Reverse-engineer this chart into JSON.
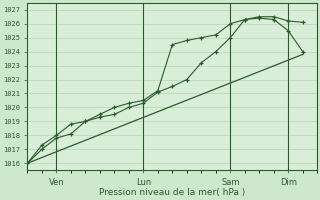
{
  "bg_color": "#cde8cd",
  "plot_bg_color": "#d8eed8",
  "grid_color": "#b0ccb0",
  "line_color": "#2d5a2d",
  "marker_color": "#2d5a2d",
  "ylabel_values": [
    1016,
    1017,
    1018,
    1019,
    1020,
    1021,
    1022,
    1023,
    1024,
    1025,
    1026,
    1027
  ],
  "ylim": [
    1015.5,
    1027.5
  ],
  "xlabel": "Pression niveau de la mer( hPa )",
  "xtick_labels": [
    "Ven",
    "Lun",
    "Sam",
    "Dim"
  ],
  "xtick_positions": [
    1,
    4,
    7,
    9
  ],
  "xvlines": [
    1,
    4,
    7,
    9
  ],
  "xlim": [
    0,
    10
  ],
  "line1_x": [
    0,
    0.5,
    1,
    1.5,
    2,
    2.5,
    3,
    3.5,
    4,
    4.5,
    5,
    5.5,
    6,
    6.5,
    7,
    7.5,
    8,
    8.5,
    9,
    9.5
  ],
  "line1_y": [
    1016.0,
    1017.0,
    1017.8,
    1018.1,
    1019.0,
    1019.3,
    1019.5,
    1020.0,
    1020.3,
    1021.1,
    1021.5,
    1022.0,
    1023.2,
    1024.0,
    1025.0,
    1026.3,
    1026.5,
    1026.5,
    1026.2,
    1026.1
  ],
  "line2_x": [
    0,
    0.5,
    1,
    1.5,
    2,
    2.5,
    3,
    3.5,
    4,
    4.5,
    5,
    5.5,
    6,
    6.5,
    7,
    7.5,
    8,
    8.5,
    9,
    9.5
  ],
  "line2_y": [
    1016.0,
    1017.3,
    1018.0,
    1018.8,
    1019.0,
    1019.5,
    1020.0,
    1020.3,
    1020.5,
    1021.2,
    1024.5,
    1024.8,
    1025.0,
    1025.2,
    1026.0,
    1026.3,
    1026.4,
    1026.3,
    1025.5,
    1024.0
  ],
  "line3_x": [
    0,
    9.5
  ],
  "line3_y": [
    1016.0,
    1023.8
  ]
}
